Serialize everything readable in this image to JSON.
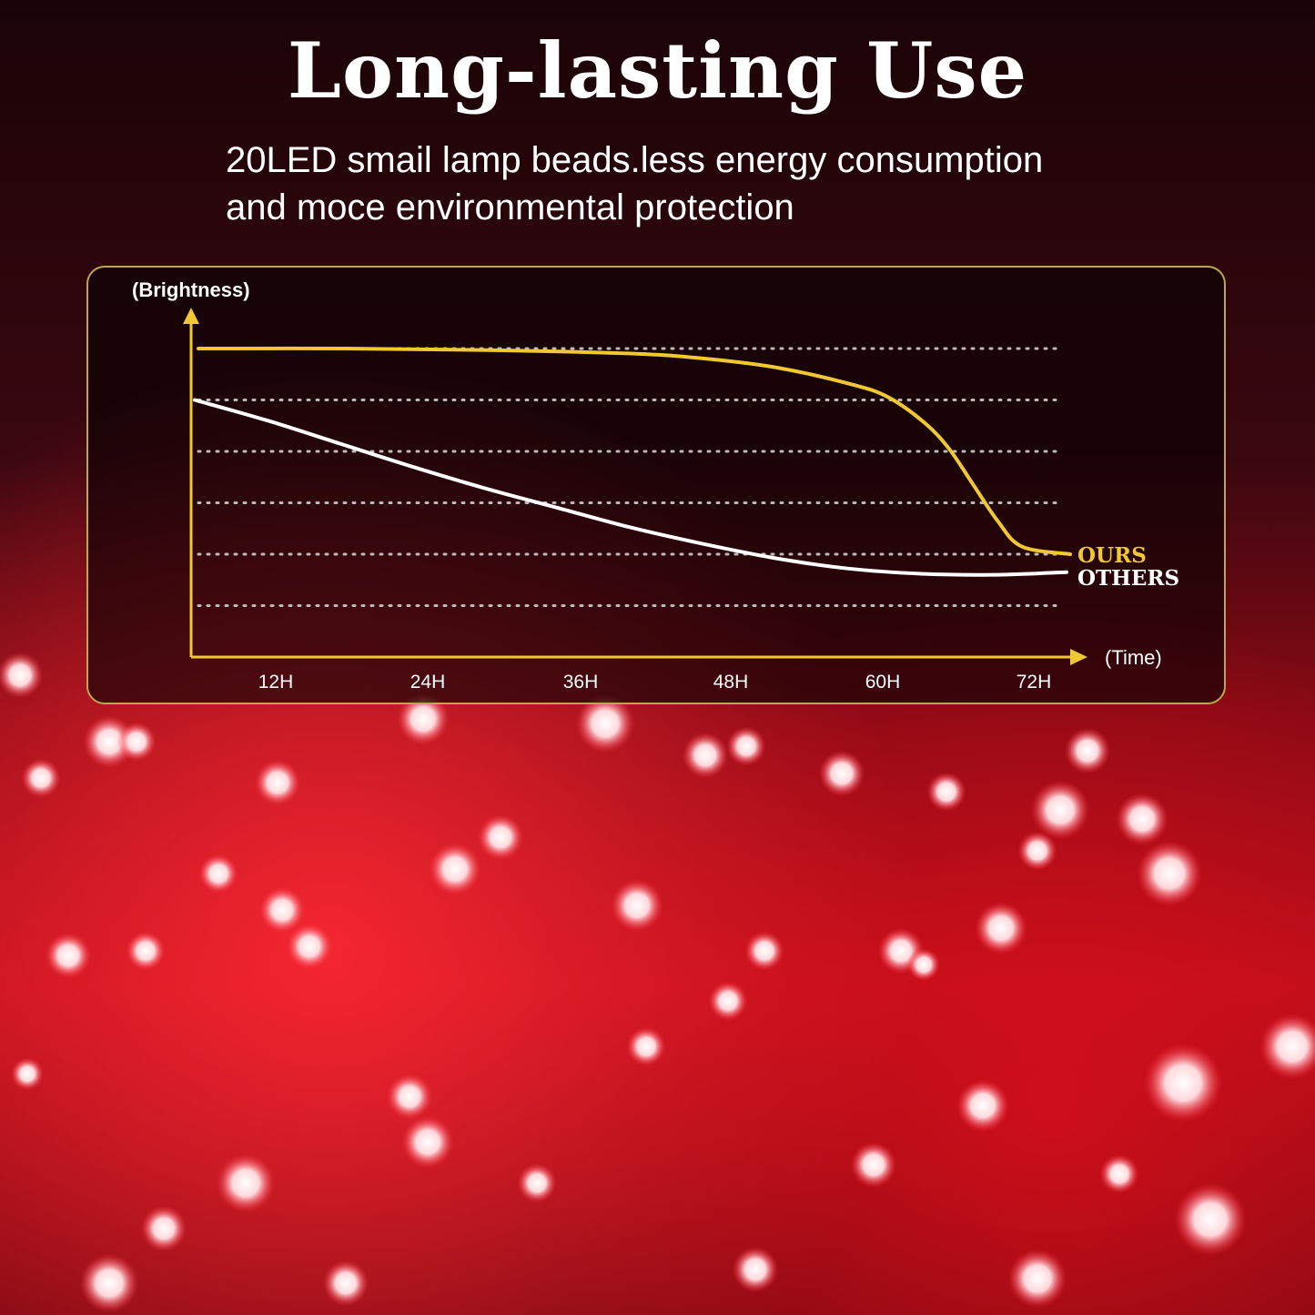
{
  "header": {
    "title": "Long-lasting Use",
    "subtitle_line1": "20LED smail lamp beads.less energy consumption",
    "subtitle_line2": "and moce environmental protection"
  },
  "colors": {
    "ours": "#f0c832",
    "others": "#ffffff",
    "axis": "#f0c832",
    "panel_border": "#bfa64a",
    "background": "#c8101c"
  },
  "chart_data": {
    "type": "line",
    "ylabel": "(Brightness)",
    "xlabel": "(Time)",
    "x_ticks": [
      "12H",
      "24H",
      "36H",
      "48H",
      "60H",
      "72H"
    ],
    "xlim": [
      0,
      72
    ],
    "ylim": [
      0,
      6
    ],
    "grid": true,
    "legend": "right",
    "series": [
      {
        "name": "OURS",
        "x": [
          0,
          12,
          24,
          36,
          42,
          48,
          54,
          57,
          60,
          62,
          64,
          66,
          68,
          72
        ],
        "y": [
          6.0,
          6.0,
          5.97,
          5.9,
          5.8,
          5.62,
          5.3,
          5.05,
          4.55,
          4.05,
          3.35,
          2.65,
          2.15,
          2.0
        ]
      },
      {
        "name": "OTHERS",
        "x": [
          0,
          6,
          12,
          18,
          24,
          30,
          36,
          42,
          48,
          54,
          60,
          66,
          72
        ],
        "y": [
          5.0,
          4.6,
          4.15,
          3.7,
          3.28,
          2.9,
          2.52,
          2.2,
          1.92,
          1.72,
          1.62,
          1.6,
          1.65
        ]
      }
    ]
  }
}
